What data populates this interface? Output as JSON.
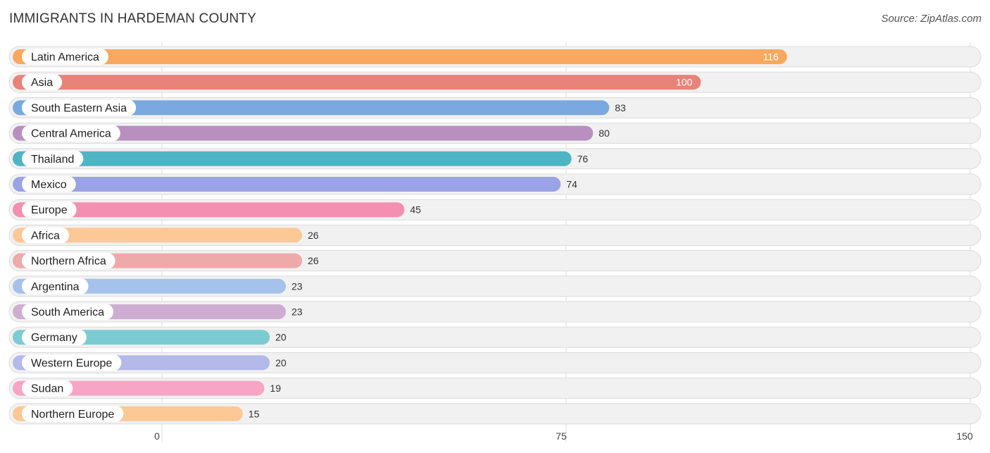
{
  "header": {
    "title": "IMMIGRANTS IN HARDEMAN COUNTY",
    "source": "Source: ZipAtlas.com"
  },
  "chart_data": {
    "type": "bar",
    "orientation": "horizontal",
    "title": "IMMIGRANTS IN HARDEMAN COUNTY",
    "categories": [
      "Latin America",
      "Asia",
      "South Eastern Asia",
      "Central America",
      "Thailand",
      "Mexico",
      "Europe",
      "Africa",
      "Northern Africa",
      "Argentina",
      "South America",
      "Germany",
      "Western Europe",
      "Sudan",
      "Northern Europe"
    ],
    "values": [
      116,
      100,
      83,
      80,
      76,
      74,
      45,
      26,
      26,
      23,
      23,
      20,
      20,
      19,
      15
    ],
    "colors": [
      "#f9a85e",
      "#e8837a",
      "#79a9e0",
      "#b98fc0",
      "#4db5c4",
      "#9aa3e3",
      "#f48fb1",
      "#fbc896",
      "#eea9a9",
      "#a5c3ea",
      "#cdaed0",
      "#7ccbd2",
      "#b3baea",
      "#f6a6c4",
      "#fbc896"
    ],
    "xlim": [
      0,
      150
    ],
    "ticks": [
      0,
      75,
      150
    ],
    "grid": true
  }
}
